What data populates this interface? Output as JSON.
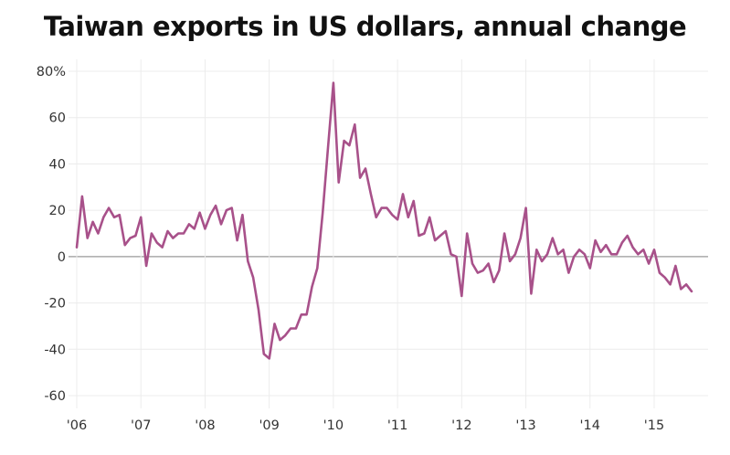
{
  "chart_data": {
    "type": "line",
    "title": "Taiwan exports in US dollars, annual change",
    "xlabel": "",
    "ylabel": "",
    "ylim": [
      -60,
      80
    ],
    "y_ticks": [
      -60,
      -40,
      -20,
      0,
      20,
      40,
      60,
      80
    ],
    "y_tick_labels": [
      "-60",
      "-40",
      "-20",
      "0",
      "20",
      "40",
      "60",
      "80%"
    ],
    "x_ticks": [
      2006,
      2007,
      2008,
      2009,
      2010,
      2011,
      2012,
      2013,
      2014,
      2015
    ],
    "x_tick_labels": [
      "'06",
      "'07",
      "'08",
      "'09",
      "'10",
      "'11",
      "'12",
      "'13",
      "'14",
      "'15"
    ],
    "grid": true,
    "legend": "none",
    "line_color": "#a8518a",
    "x_start": 2006,
    "x_step_months": 1,
    "series": [
      {
        "values": [
          4,
          26,
          8,
          15,
          10,
          17,
          21,
          17,
          18,
          5,
          8,
          9,
          17,
          -4,
          10,
          6,
          4,
          11,
          8,
          10,
          10,
          14,
          12,
          19,
          12,
          18,
          22,
          14,
          20,
          21,
          7,
          18,
          -2,
          -9,
          -23,
          -42,
          -44,
          -29,
          -36,
          -34,
          -31,
          -31,
          -25,
          -25,
          -13,
          -5,
          19,
          47,
          75,
          32,
          50,
          48,
          57,
          34,
          38,
          27,
          17,
          21,
          21,
          18,
          16,
          27,
          17,
          24,
          9,
          10,
          17,
          7,
          9,
          11,
          1,
          0,
          -17,
          10,
          -3,
          -7,
          -6,
          -3,
          -11,
          -6,
          10,
          -2,
          1,
          8,
          21,
          -16,
          3,
          -2,
          1,
          8,
          1,
          3,
          -7,
          0,
          3,
          1,
          -5,
          7,
          2,
          5,
          1,
          1,
          6,
          9,
          4,
          1,
          3,
          -3,
          3,
          -7,
          -9,
          -12,
          -4,
          -14,
          -12,
          -15
        ]
      }
    ]
  }
}
